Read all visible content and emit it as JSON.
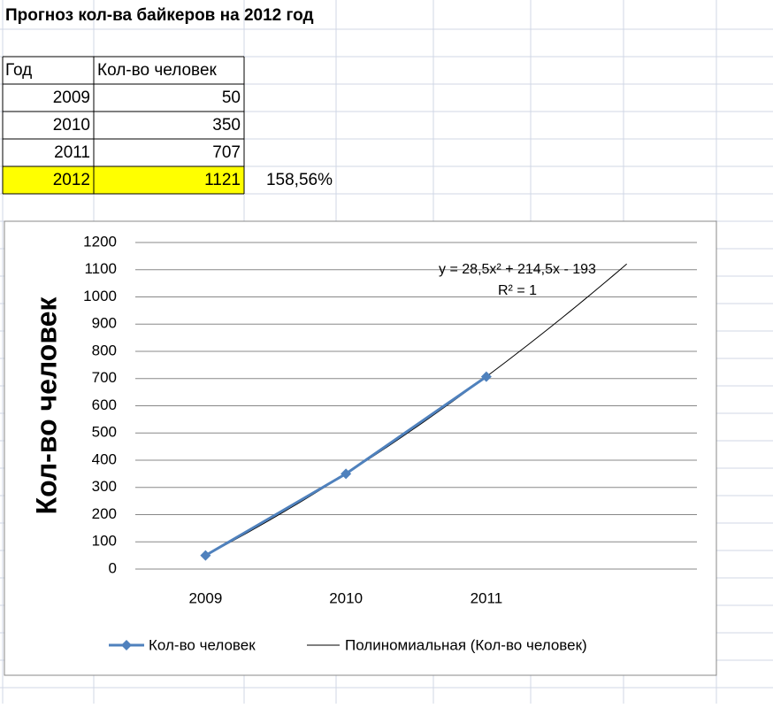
{
  "sheet": {
    "title": "Прогноз кол-ва байкеров на 2012 год",
    "table": {
      "header": [
        "Год",
        "Кол-во человек"
      ],
      "rows": [
        [
          2009,
          50
        ],
        [
          2010,
          350
        ],
        [
          2011,
          707
        ],
        [
          2012,
          1121
        ]
      ],
      "note": "158,56%",
      "highlight_color": "#ffff00"
    }
  },
  "chart_data": {
    "type": "line",
    "y_label": "Кол-во человек",
    "categories": [
      "2009",
      "2010",
      "2011",
      null
    ],
    "series": [
      {
        "name": "Кол-во человек",
        "color": "#4f81bd",
        "values": [
          50,
          350,
          707,
          null
        ]
      }
    ],
    "trendline": {
      "name": "Полиномиальная (Кол-во человек)",
      "color": "#000000",
      "coefficients": [
        28.5,
        214.5,
        -193
      ],
      "forward": 1,
      "equation_label": "y = 28,5x² + 214,5x - 193",
      "r2_label": "R² = 1"
    },
    "ylim": [
      0,
      1200
    ],
    "yticks": [
      0,
      100,
      200,
      300,
      400,
      500,
      600,
      700,
      800,
      900,
      1000,
      1100,
      1200
    ],
    "grid": true,
    "legend": "bottom"
  }
}
